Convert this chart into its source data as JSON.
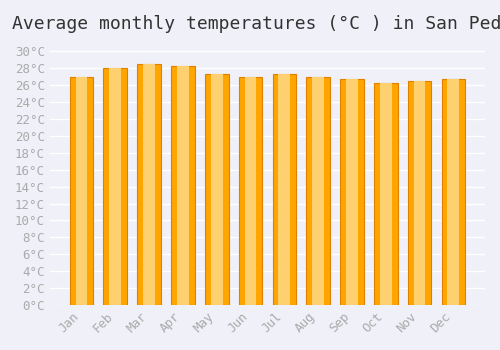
{
  "title": "Average monthly temperatures (°C ) in San Pedro",
  "months": [
    "Jan",
    "Feb",
    "Mar",
    "Apr",
    "May",
    "Jun",
    "Jul",
    "Aug",
    "Sep",
    "Oct",
    "Nov",
    "Dec"
  ],
  "values": [
    27.0,
    28.0,
    28.5,
    28.3,
    27.3,
    27.0,
    27.3,
    27.0,
    26.7,
    26.3,
    26.5,
    26.7
  ],
  "bar_color": "#FFA500",
  "bar_edge_color": "#E08000",
  "background_color": "#f0f0f8",
  "ylim": [
    0,
    31
  ],
  "ytick_step": 2,
  "grid_color": "#ffffff",
  "title_fontsize": 13,
  "tick_fontsize": 9,
  "tick_color": "#aaaaaa"
}
